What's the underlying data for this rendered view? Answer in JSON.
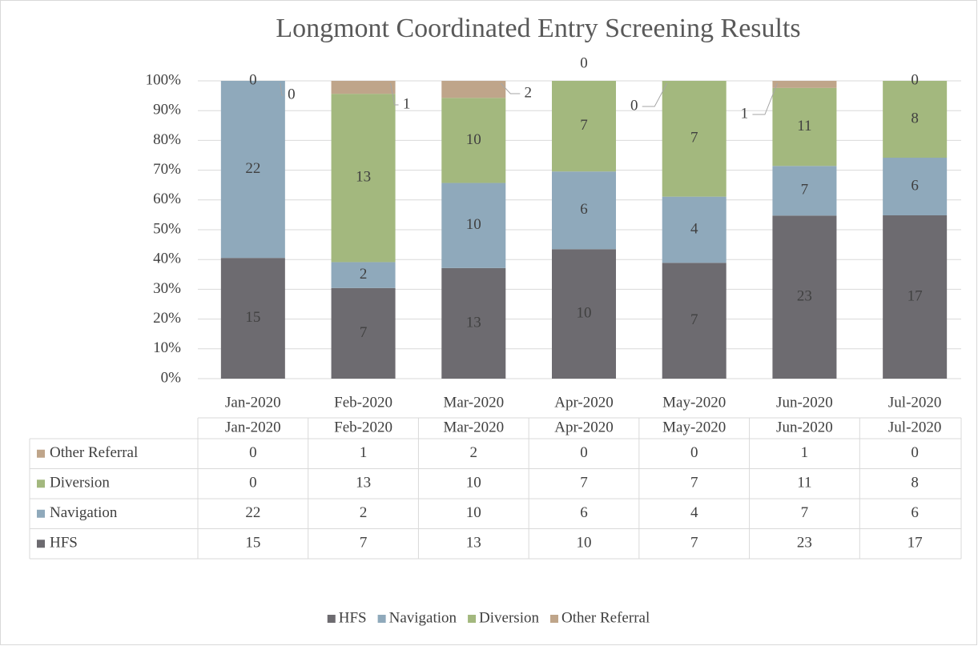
{
  "chart_data": {
    "type": "bar",
    "stacking": "percent",
    "title": "Longmont Coordinated Entry Screening Results",
    "categories": [
      "Jan-2020",
      "Feb-2020",
      "Mar-2020",
      "Apr-2020",
      "May-2020",
      "Jun-2020",
      "Jul-2020"
    ],
    "series": [
      {
        "name": "HFS",
        "color": "#6d6b70",
        "values": [
          15,
          7,
          13,
          10,
          7,
          23,
          17
        ]
      },
      {
        "name": "Navigation",
        "color": "#8fa9bb",
        "values": [
          22,
          2,
          10,
          6,
          4,
          7,
          6
        ]
      },
      {
        "name": "Diversion",
        "color": "#a3b87e",
        "values": [
          0,
          13,
          10,
          7,
          7,
          11,
          8
        ]
      },
      {
        "name": "Other Referral",
        "color": "#bfa58a",
        "values": [
          0,
          1,
          2,
          0,
          0,
          1,
          0
        ]
      }
    ],
    "ylim": [
      0,
      100
    ],
    "yticks": [
      {
        "value": 0,
        "label": "0%"
      },
      {
        "value": 10,
        "label": "10%"
      },
      {
        "value": 20,
        "label": "20%"
      },
      {
        "value": 30,
        "label": "30%"
      },
      {
        "value": 40,
        "label": "40%"
      },
      {
        "value": 50,
        "label": "50%"
      },
      {
        "value": 60,
        "label": "60%"
      },
      {
        "value": 70,
        "label": "70%"
      },
      {
        "value": 80,
        "label": "80%"
      },
      {
        "value": 90,
        "label": "90%"
      },
      {
        "value": 100,
        "label": "100%"
      }
    ],
    "grid": true,
    "legend": "bottom",
    "data_table": true
  }
}
